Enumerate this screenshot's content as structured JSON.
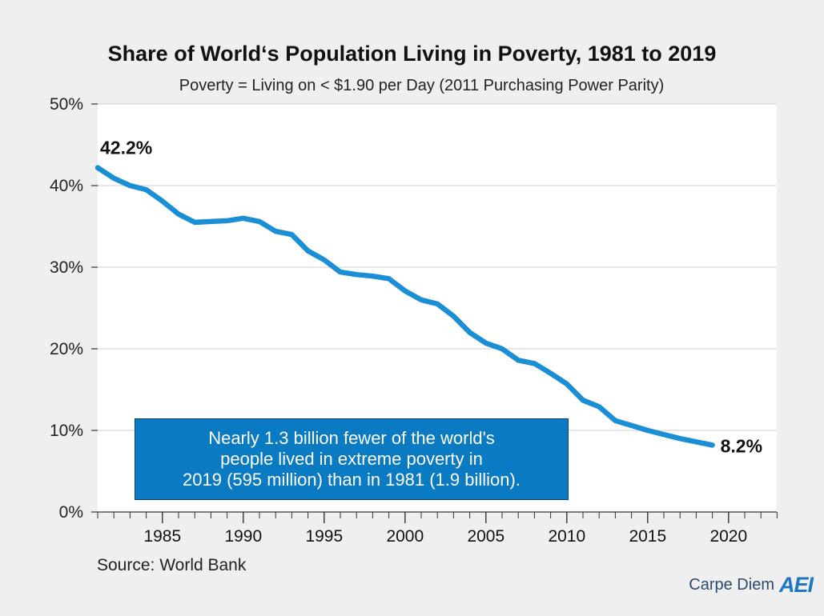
{
  "header": {
    "title": "Share of World‘s Population Living in Poverty, 1981 to 2019",
    "subtitle": "Poverty = Living on < $1.90 per Day (2011 Purchasing Power Parity)"
  },
  "annotation": {
    "lines": [
      "Nearly 1.3 billion fewer of the world's",
      "people lived in extreme poverty in",
      "2019 (595 million) than in 1981 (1.9 billion)."
    ]
  },
  "footer": {
    "source": "Source: World Bank",
    "brand": "Carpe Diem",
    "logo": "AEI"
  },
  "colors": {
    "line": "#1a8fd6",
    "annotation_bg": "#0a7ac2",
    "background": "#efefef",
    "plot_bg": "#ffffff"
  },
  "chart_data": {
    "type": "line",
    "title": "Share of World‘s Population Living in Poverty, 1981 to 2019",
    "subtitle": "Poverty = Living on < $1.90 per Day (2011 Purchasing Power Parity)",
    "xlabel": "",
    "ylabel": "",
    "xlim": [
      1981,
      2023
    ],
    "ylim": [
      0,
      50
    ],
    "xticks": [
      1985,
      1990,
      1995,
      2000,
      2005,
      2010,
      2015,
      2020
    ],
    "yticks": [
      0,
      10,
      20,
      30,
      40,
      50
    ],
    "ytick_labels": [
      "0%",
      "10%",
      "20%",
      "30%",
      "40%",
      "50%"
    ],
    "grid": "horizontal",
    "series": [
      {
        "x": [
          1981,
          1982,
          1983,
          1984,
          1985,
          1986,
          1987,
          1988,
          1989,
          1990,
          1991,
          1992,
          1993,
          1994,
          1995,
          1996,
          1997,
          1998,
          1999,
          2000,
          2001,
          2002,
          2003,
          2004,
          2005,
          2006,
          2007,
          2008,
          2009,
          2010,
          2011,
          2012,
          2013,
          2014,
          2015,
          2016,
          2017,
          2018,
          2019
        ],
        "y": [
          42.2,
          40.9,
          40.0,
          39.5,
          38.1,
          36.5,
          35.5,
          35.6,
          35.7,
          36.0,
          35.6,
          34.4,
          34.0,
          32.0,
          30.9,
          29.4,
          29.1,
          28.9,
          28.6,
          27.1,
          26.0,
          25.5,
          24.0,
          22.0,
          20.7,
          20.0,
          18.6,
          18.2,
          17.0,
          15.7,
          13.7,
          12.9,
          11.2,
          10.6,
          10.0,
          9.5,
          9.0,
          8.6,
          8.2
        ]
      }
    ],
    "data_labels": [
      {
        "x": 1981,
        "y": 42.2,
        "text": "42.2%"
      },
      {
        "x": 2019,
        "y": 8.2,
        "text": "8.2%"
      }
    ]
  }
}
